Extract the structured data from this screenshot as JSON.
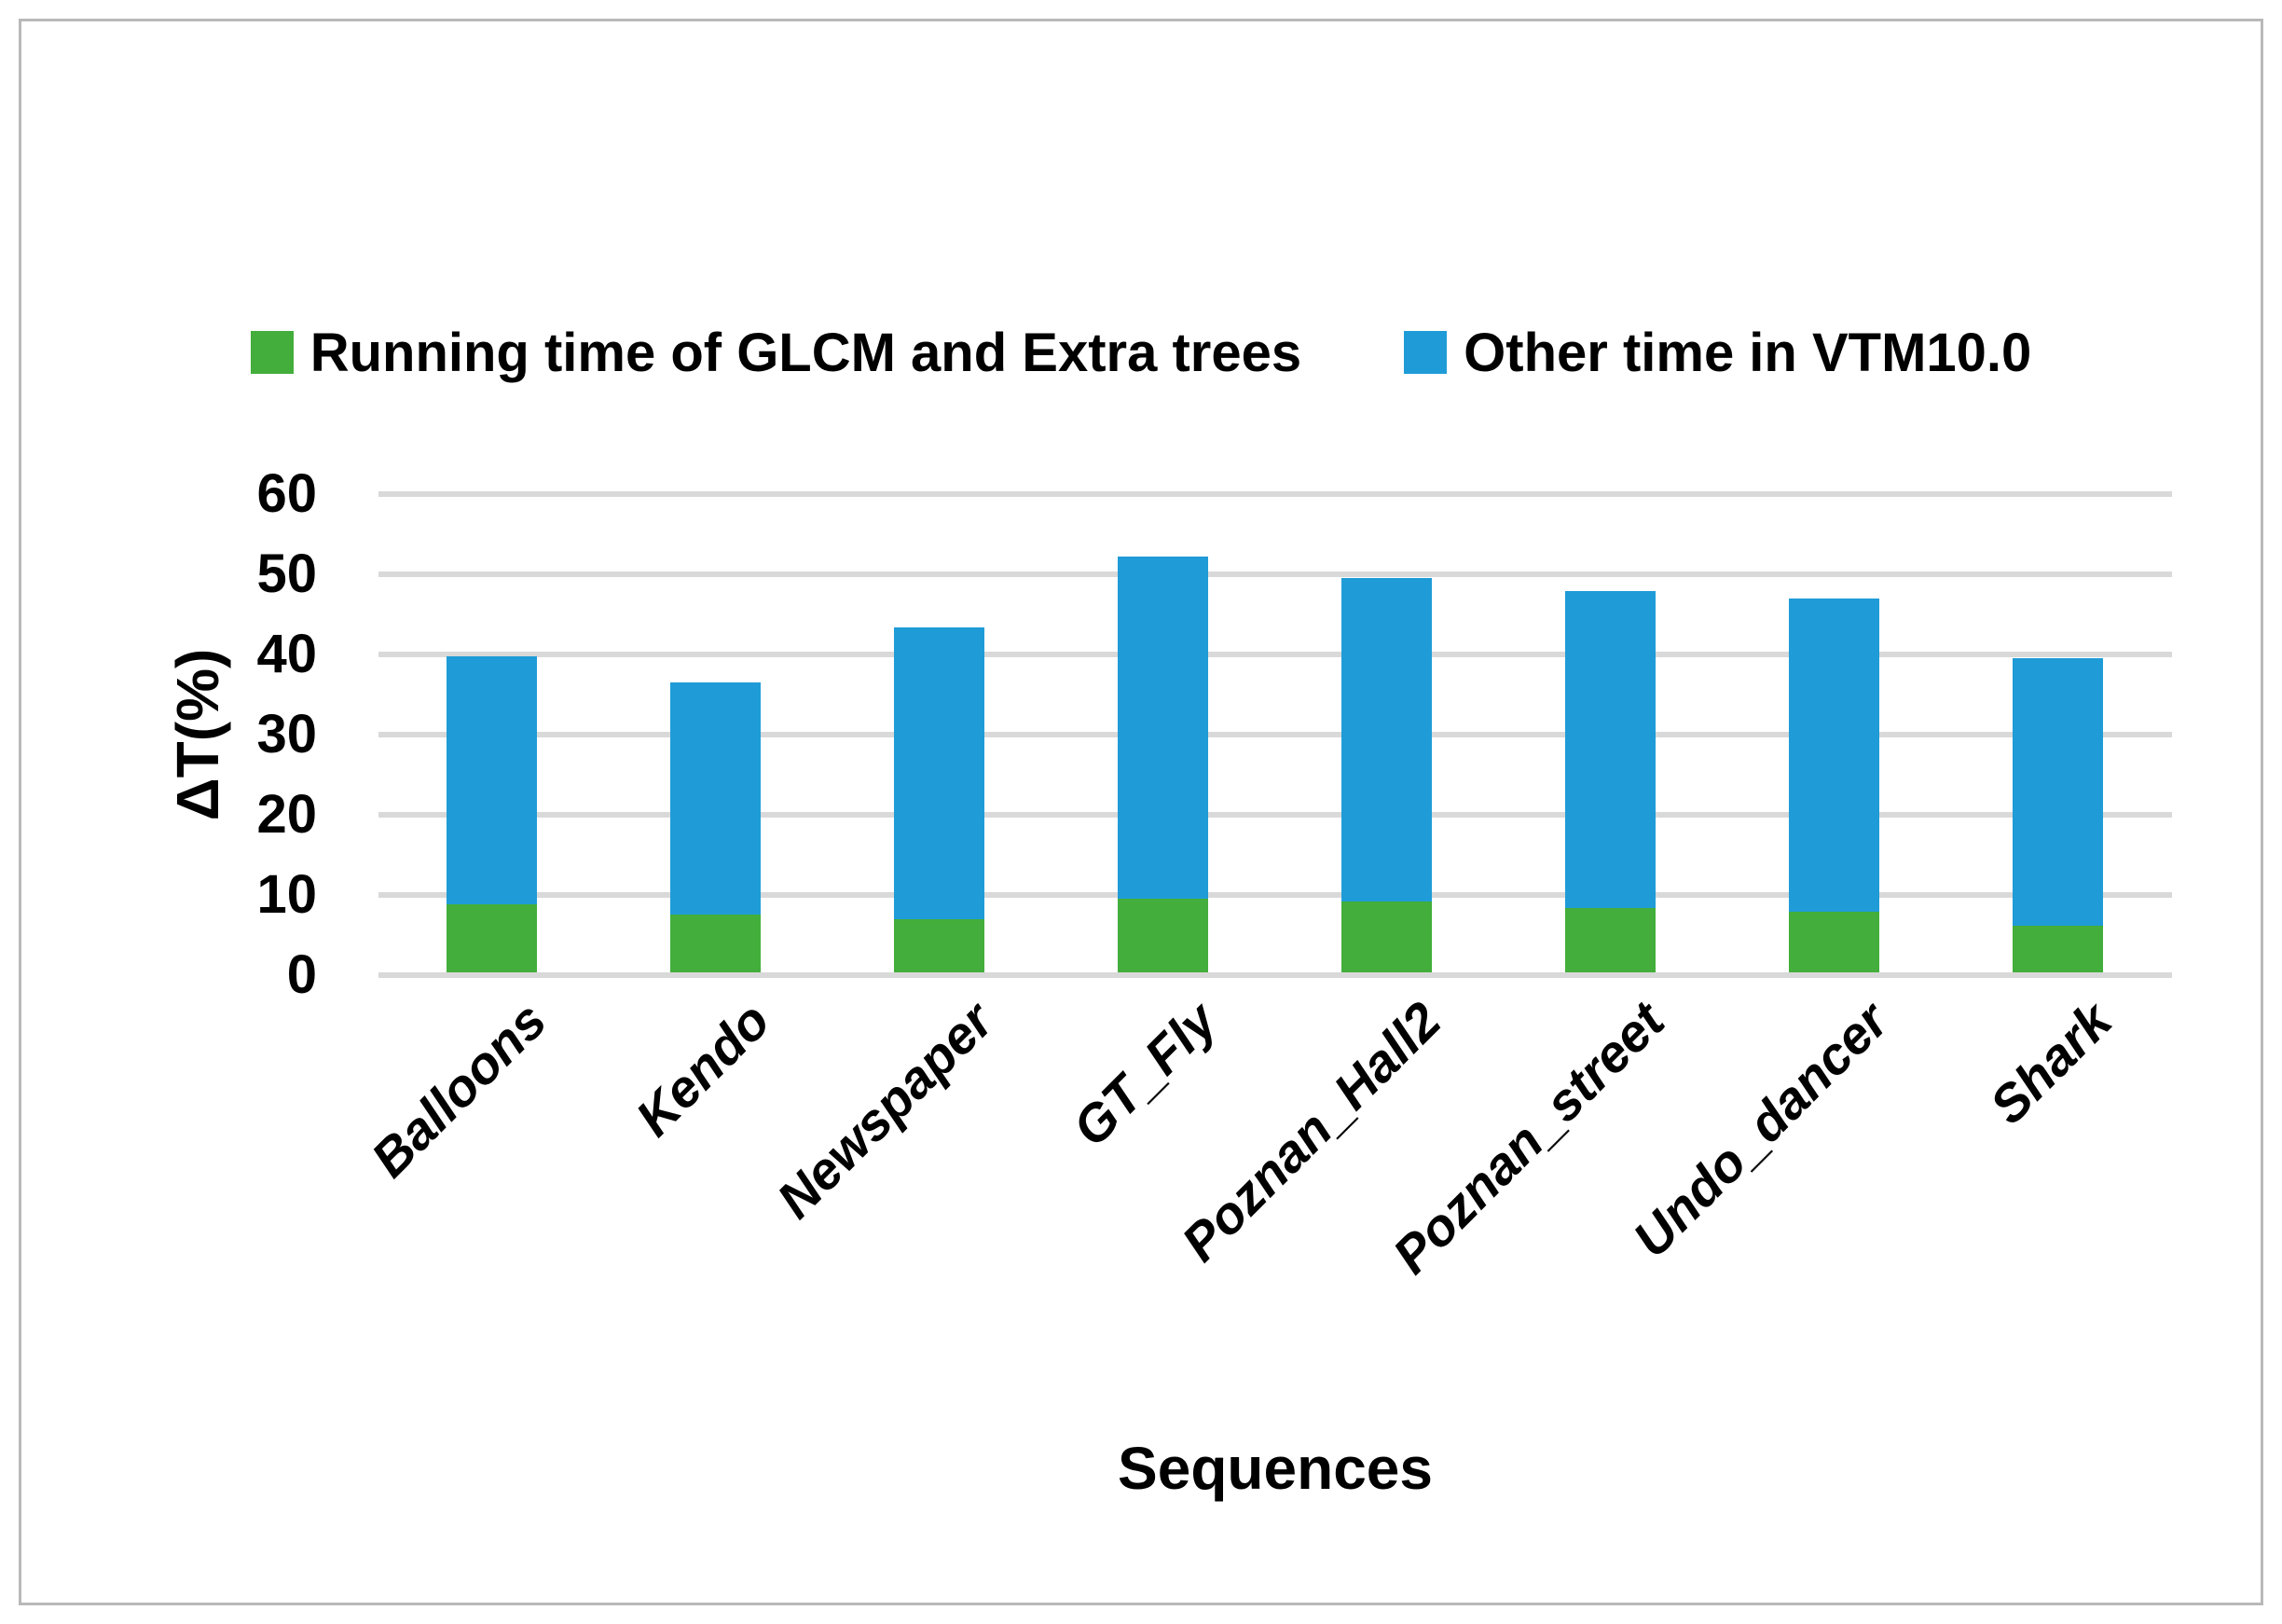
{
  "chart_data": {
    "type": "bar",
    "stacked": true,
    "categories": [
      "Balloons",
      "Kendo",
      "Newspaper",
      "GT_Fly",
      "Poznan_Hall2",
      "Poznan_street",
      "Undo_dancer",
      "Shark"
    ],
    "series": [
      {
        "name": "Running time of GLCM and Extra trees",
        "color": "#43ae3b",
        "values": [
          8.5,
          7.2,
          6.6,
          9.2,
          8.8,
          8.0,
          7.6,
          5.8
        ]
      },
      {
        "name": "Other time in VTM10.0",
        "color": "#1f9cd7",
        "values": [
          30.9,
          29.0,
          36.4,
          42.7,
          40.4,
          39.6,
          39.0,
          33.4
        ]
      }
    ],
    "totals": [
      39.4,
      36.2,
      43.0,
      51.9,
      49.2,
      47.6,
      46.6,
      39.2
    ],
    "xlabel": "Sequences",
    "ylabel": "ΔT(%)",
    "ylim": [
      0,
      60
    ],
    "yticks": [
      "0",
      "10",
      "20",
      "30",
      "40",
      "50",
      "60"
    ],
    "grid": "horizontal",
    "legend_position": "top",
    "gridline_color": "#d9d9d9",
    "border_color": "#b9b9b9",
    "background": "#ffffff"
  }
}
